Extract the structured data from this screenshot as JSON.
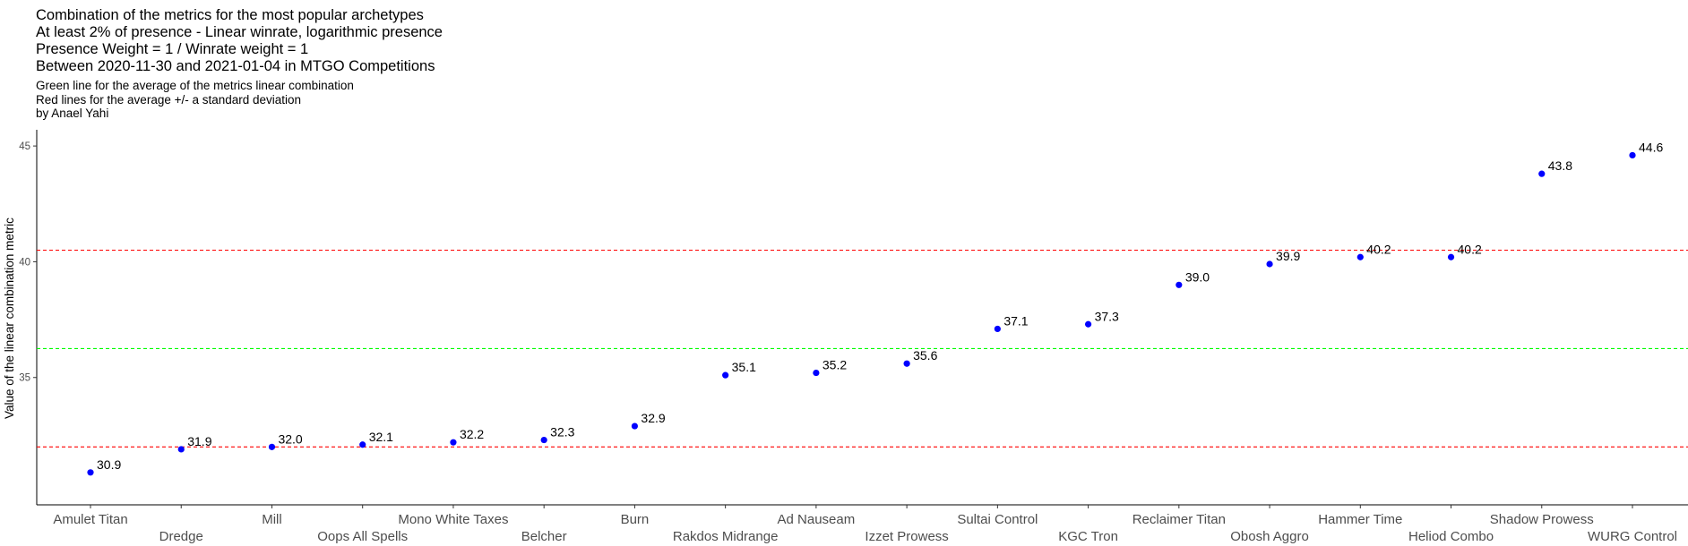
{
  "chart_data": {
    "type": "scatter",
    "title_lines": [
      "Combination of the metrics for the most popular archetypes",
      "At least 2% of presence - Linear winrate, logarithmic presence",
      "Presence Weight = 1 / Winrate weight = 1",
      "Between 2020-11-30 and 2021-01-04 in MTGO Competitions"
    ],
    "subtitle_lines": [
      "Green line for the average of the metrics linear combination",
      "Red lines for the average +/- a standard deviation",
      "by Anael Yahi"
    ],
    "xlabel": "",
    "ylabel": "Value of the linear combination metric",
    "ylim": [
      29.5,
      45.7
    ],
    "yticks": [
      35,
      40,
      45
    ],
    "grid": false,
    "legend": "none",
    "categories": [
      "Amulet Titan",
      "Dredge",
      "Mill",
      "Oops All Spells",
      "Mono White Taxes",
      "Belcher",
      "Burn",
      "Rakdos Midrange",
      "Ad Nauseam",
      "Izzet Prowess",
      "Sultai Control",
      "KGC Tron",
      "Reclaimer Titan",
      "Obosh Aggro",
      "Hammer Time",
      "Heliod Combo",
      "Shadow Prowess",
      "WURG Control"
    ],
    "values": [
      30.9,
      31.9,
      32.0,
      32.1,
      32.2,
      32.3,
      32.9,
      35.1,
      35.2,
      35.6,
      37.1,
      37.3,
      39.0,
      39.9,
      40.2,
      40.2,
      43.8,
      44.6
    ],
    "data_labels": [
      "30.9",
      "31.9",
      "32.0",
      "32.1",
      "32.2",
      "32.3",
      "32.9",
      "35.1",
      "35.2",
      "35.6",
      "37.1",
      "37.3",
      "39.0",
      "39.9",
      "40.2",
      "40.2",
      "43.8",
      "44.6"
    ],
    "reference_lines": [
      {
        "kind": "mean",
        "value": 36.25,
        "color": "#00ff00"
      },
      {
        "kind": "mean-plus-sd",
        "value": 40.5,
        "color": "#ff0000"
      },
      {
        "kind": "mean-minus-sd",
        "value": 32.0,
        "color": "#ff0000"
      }
    ],
    "point_color": "#0000ff"
  }
}
